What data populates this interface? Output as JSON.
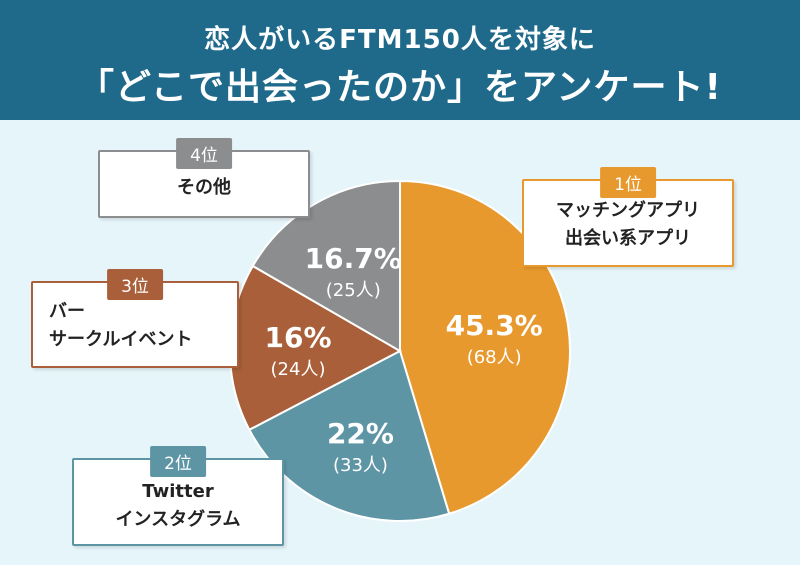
{
  "title": {
    "line1": "恋人がいるFTM150人を対象に",
    "line2": "「どこで出会ったのか」をアンケート!"
  },
  "colors": {
    "header": "#1f6a8b",
    "background": "#e6f5fa",
    "rank1": "#e8992e",
    "rank2": "#5e95a5",
    "rank3": "#a9603a",
    "rank4": "#8b8d8f"
  },
  "chart_data": {
    "type": "pie",
    "slices": [
      {
        "rank": "1位",
        "label_lines": [
          "マッチングアプリ",
          "出会い系アプリ"
        ],
        "percent_label": "45.3%",
        "count_label": "(68人)",
        "value": 68,
        "color": "#e8992e"
      },
      {
        "rank": "2位",
        "label_lines": [
          "Twitter",
          "インスタグラム"
        ],
        "percent_label": "22%",
        "count_label": "(33人)",
        "value": 33,
        "color": "#5e95a5"
      },
      {
        "rank": "3位",
        "label_lines": [
          "バー",
          "サークルイベント"
        ],
        "percent_label": "16%",
        "count_label": "(24人)",
        "value": 24,
        "color": "#a9603a"
      },
      {
        "rank": "4位",
        "label_lines": [
          "その他"
        ],
        "percent_label": "16.7%",
        "count_label": "(25人)",
        "value": 25,
        "color": "#8b8d8f"
      }
    ]
  }
}
